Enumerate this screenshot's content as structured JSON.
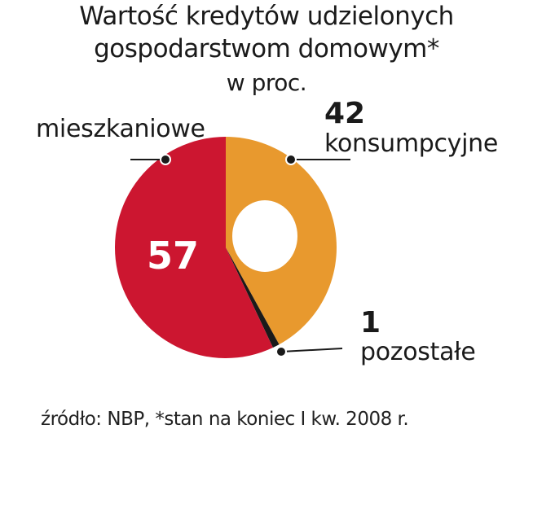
{
  "chart_data": {
    "type": "pie",
    "title": "Wartość kredytów udzielonych gospodarstwom domowym*",
    "title_line1": "Wartość kredytów udzielonych",
    "title_line2": "gospodarstwom domowym*",
    "subtitle": "w proc.",
    "slices": [
      {
        "label": "konsumpcyjne",
        "value": 42,
        "value_label": "42",
        "color": "#e8992e"
      },
      {
        "label": "pozostałe",
        "value": 1,
        "value_label": "1",
        "color": "#1a1a1a"
      },
      {
        "label": "mieszkaniowe",
        "value": 57,
        "value_label": "57",
        "color": "#cc1630"
      }
    ],
    "source": "źródło: NBP, *stan na koniec I kw. 2008 r."
  }
}
